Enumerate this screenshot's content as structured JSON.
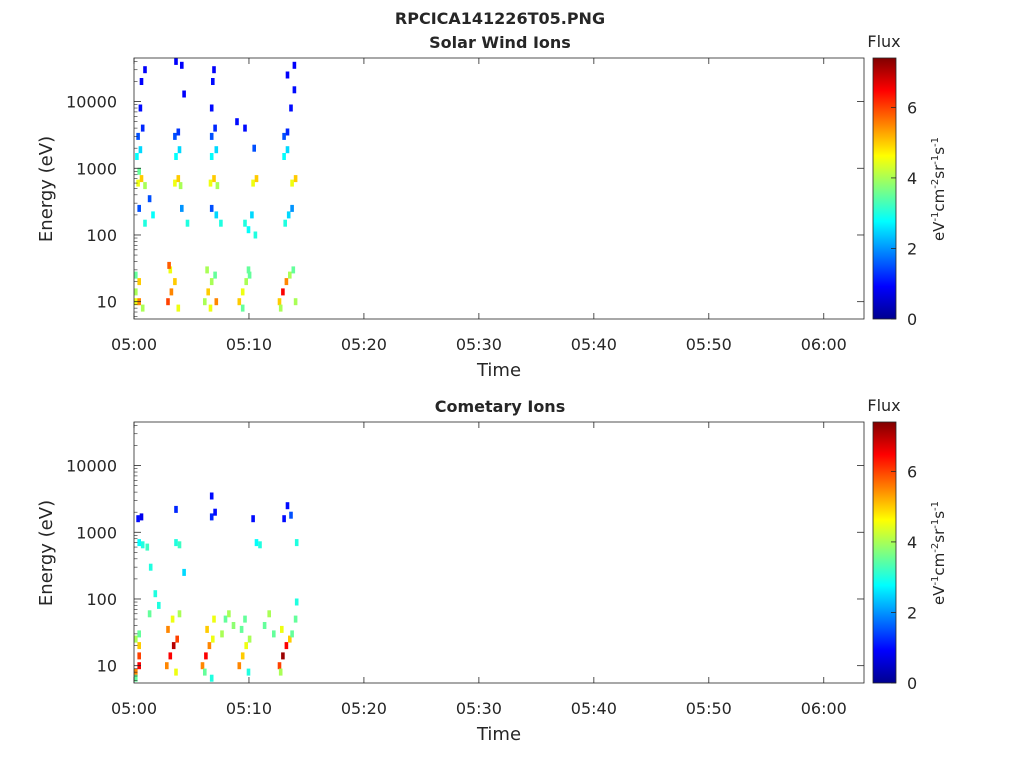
{
  "chart_data": [
    {
      "type": "heatmap",
      "supertitle": "RPCICA141226T05.PNG",
      "title": "Solar Wind Ions",
      "xlabel": "Time",
      "ylabel": "Energy (eV)",
      "x_ticks": [
        "05:00",
        "05:10",
        "05:20",
        "05:30",
        "05:40",
        "05:50",
        "06:00"
      ],
      "x_range_minutes": [
        0,
        63.5
      ],
      "y_scale": "log",
      "y_range": [
        5.5,
        45000
      ],
      "y_ticks": [
        10,
        100,
        1000,
        10000
      ],
      "y_tick_labels": [
        "10",
        "100",
        "1000",
        "10000"
      ],
      "colorbar": {
        "label": "Flux",
        "unit": "eV-1cm-2sr-1s-1",
        "range": [
          0,
          7.4
        ],
        "ticks": [
          0,
          2,
          4,
          6
        ],
        "colormap": "jet"
      },
      "cells": [
        [
          0.0,
          10,
          4.5
        ],
        [
          0.3,
          10,
          5.5
        ],
        [
          0.0,
          14,
          4.0
        ],
        [
          0.3,
          20,
          5.0
        ],
        [
          0.0,
          25,
          3.5
        ],
        [
          0.6,
          8,
          4.0
        ],
        [
          0.2,
          600,
          4.5
        ],
        [
          0.5,
          700,
          5.0
        ],
        [
          0.8,
          550,
          4.0
        ],
        [
          0.3,
          900,
          3.5
        ],
        [
          0.1,
          1500,
          2.8
        ],
        [
          0.4,
          1900,
          2.5
        ],
        [
          0.2,
          3000,
          1.5
        ],
        [
          0.6,
          4000,
          1.2
        ],
        [
          0.4,
          8000,
          1.0
        ],
        [
          0.5,
          20000,
          0.9
        ],
        [
          0.8,
          30000,
          0.9
        ],
        [
          0.3,
          250,
          1.5
        ],
        [
          1.2,
          350,
          1.5
        ],
        [
          0.8,
          150,
          3.0
        ],
        [
          1.5,
          200,
          2.8
        ],
        [
          2.8,
          10,
          6.0
        ],
        [
          3.1,
          14,
          5.5
        ],
        [
          3.4,
          20,
          5.0
        ],
        [
          3.0,
          30,
          4.5
        ],
        [
          3.7,
          8,
          4.5
        ],
        [
          2.9,
          35,
          5.8
        ],
        [
          3.4,
          600,
          4.5
        ],
        [
          3.7,
          700,
          5.0
        ],
        [
          3.9,
          550,
          4.0
        ],
        [
          3.5,
          1500,
          2.8
        ],
        [
          3.8,
          1900,
          2.5
        ],
        [
          3.4,
          3000,
          1.5
        ],
        [
          3.7,
          3500,
          1.3
        ],
        [
          4.0,
          35000,
          0.9
        ],
        [
          4.2,
          13000,
          0.9
        ],
        [
          3.5,
          40000,
          0.9
        ],
        [
          4.0,
          250,
          2.0
        ],
        [
          4.5,
          150,
          3.0
        ],
        [
          6.0,
          10,
          4.0
        ],
        [
          6.3,
          14,
          5.0
        ],
        [
          6.6,
          20,
          4.0
        ],
        [
          6.9,
          25,
          3.5
        ],
        [
          6.5,
          8,
          4.5
        ],
        [
          7.0,
          10,
          5.5
        ],
        [
          6.2,
          30,
          4.0
        ],
        [
          6.5,
          600,
          4.5
        ],
        [
          6.8,
          700,
          5.0
        ],
        [
          7.1,
          550,
          4.0
        ],
        [
          6.6,
          1500,
          2.8
        ],
        [
          7.0,
          1900,
          2.5
        ],
        [
          6.6,
          3000,
          1.5
        ],
        [
          6.9,
          4000,
          1.2
        ],
        [
          6.6,
          8000,
          1.0
        ],
        [
          6.8,
          30000,
          0.9
        ],
        [
          6.7,
          20000,
          1.0
        ],
        [
          7.0,
          200,
          2.5
        ],
        [
          6.6,
          250,
          1.5
        ],
        [
          7.4,
          150,
          3.0
        ],
        [
          9.0,
          10,
          5.0
        ],
        [
          9.3,
          14,
          4.5
        ],
        [
          9.6,
          20,
          4.0
        ],
        [
          9.9,
          25,
          3.5
        ],
        [
          9.3,
          8,
          3.5
        ],
        [
          9.8,
          30,
          3.5
        ],
        [
          10.2,
          600,
          4.5
        ],
        [
          10.5,
          700,
          5.0
        ],
        [
          9.5,
          4000,
          1.0
        ],
        [
          8.8,
          5000,
          1.0
        ],
        [
          10.3,
          2000,
          1.5
        ],
        [
          9.5,
          150,
          3.0
        ],
        [
          9.8,
          120,
          2.8
        ],
        [
          10.1,
          200,
          2.5
        ],
        [
          10.4,
          100,
          3.0
        ],
        [
          12.5,
          10,
          5.0
        ],
        [
          12.8,
          14,
          6.5
        ],
        [
          13.1,
          20,
          5.5
        ],
        [
          13.4,
          25,
          4.0
        ],
        [
          12.6,
          8,
          4.0
        ],
        [
          13.7,
          30,
          3.5
        ],
        [
          13.9,
          10,
          4.0
        ],
        [
          13.6,
          600,
          4.5
        ],
        [
          13.9,
          700,
          5.0
        ],
        [
          12.9,
          1500,
          2.8
        ],
        [
          13.2,
          1900,
          2.5
        ],
        [
          12.9,
          3000,
          1.5
        ],
        [
          13.2,
          3500,
          1.2
        ],
        [
          13.5,
          8000,
          1.0
        ],
        [
          13.2,
          25000,
          0.9
        ],
        [
          13.8,
          35000,
          0.9
        ],
        [
          13.8,
          15000,
          1.0
        ],
        [
          13.0,
          150,
          3.0
        ],
        [
          13.3,
          200,
          2.5
        ],
        [
          13.6,
          250,
          2.0
        ]
      ]
    },
    {
      "type": "heatmap",
      "title": "Cometary Ions",
      "xlabel": "Time",
      "ylabel": "Energy (eV)",
      "x_ticks": [
        "05:00",
        "05:10",
        "05:20",
        "05:30",
        "05:40",
        "05:50",
        "06:00"
      ],
      "x_range_minutes": [
        0,
        63.5
      ],
      "y_scale": "log",
      "y_range": [
        5.5,
        45000
      ],
      "y_ticks": [
        10,
        100,
        1000,
        10000
      ],
      "y_tick_labels": [
        "10",
        "100",
        "1000",
        "10000"
      ],
      "colorbar": {
        "label": "Flux",
        "unit": "eV-1cm-2sr-1s-1",
        "range": [
          0,
          7.4
        ],
        "ticks": [
          0,
          2,
          4,
          6
        ],
        "colormap": "jet"
      },
      "cells": [
        [
          0.0,
          8,
          5.5
        ],
        [
          0.3,
          10,
          6.5
        ],
        [
          0.3,
          14,
          6.0
        ],
        [
          0.3,
          20,
          5.0
        ],
        [
          0.0,
          25,
          4.0
        ],
        [
          0.3,
          30,
          3.5
        ],
        [
          0.0,
          6.5,
          3.5
        ],
        [
          0.2,
          1600,
          1.0
        ],
        [
          0.5,
          1700,
          0.8
        ],
        [
          0.3,
          700,
          2.8
        ],
        [
          0.6,
          650,
          3.0
        ],
        [
          1.0,
          600,
          3.2
        ],
        [
          1.3,
          300,
          3.0
        ],
        [
          1.7,
          120,
          3.0
        ],
        [
          1.2,
          60,
          3.5
        ],
        [
          2.0,
          80,
          3.0
        ],
        [
          2.7,
          10,
          5.5
        ],
        [
          3.0,
          14,
          6.5
        ],
        [
          3.3,
          20,
          7.0
        ],
        [
          3.6,
          25,
          6.0
        ],
        [
          2.8,
          35,
          5.5
        ],
        [
          3.2,
          50,
          4.5
        ],
        [
          3.5,
          8,
          4.5
        ],
        [
          3.8,
          60,
          4.0
        ],
        [
          3.5,
          700,
          3.0
        ],
        [
          3.8,
          650,
          3.2
        ],
        [
          3.5,
          2200,
          1.2
        ],
        [
          4.2,
          250,
          2.5
        ],
        [
          5.8,
          10,
          5.5
        ],
        [
          6.1,
          14,
          6.5
        ],
        [
          6.4,
          20,
          5.5
        ],
        [
          6.7,
          25,
          4.5
        ],
        [
          6.2,
          35,
          5.0
        ],
        [
          6.8,
          50,
          4.5
        ],
        [
          6.0,
          8,
          3.5
        ],
        [
          6.6,
          6.5,
          3.0
        ],
        [
          6.6,
          1700,
          1.2
        ],
        [
          6.9,
          2000,
          1.0
        ],
        [
          6.6,
          3500,
          1.0
        ],
        [
          7.5,
          30,
          4.0
        ],
        [
          7.8,
          50,
          3.5
        ],
        [
          8.1,
          60,
          4.0
        ],
        [
          8.5,
          40,
          3.8
        ],
        [
          9.0,
          10,
          5.5
        ],
        [
          9.3,
          14,
          5.0
        ],
        [
          9.6,
          20,
          4.5
        ],
        [
          9.9,
          25,
          4.0
        ],
        [
          9.2,
          35,
          3.5
        ],
        [
          9.8,
          8,
          3.0
        ],
        [
          9.5,
          50,
          3.5
        ],
        [
          10.2,
          1600,
          1.0
        ],
        [
          10.5,
          700,
          2.8
        ],
        [
          10.8,
          650,
          3.0
        ],
        [
          11.2,
          40,
          3.5
        ],
        [
          11.6,
          60,
          4.0
        ],
        [
          12.0,
          30,
          3.5
        ],
        [
          12.5,
          10,
          6.0
        ],
        [
          12.8,
          14,
          7.2
        ],
        [
          13.1,
          20,
          6.5
        ],
        [
          13.4,
          25,
          5.0
        ],
        [
          12.7,
          35,
          4.5
        ],
        [
          13.6,
          30,
          3.5
        ],
        [
          13.9,
          50,
          3.5
        ],
        [
          12.6,
          8,
          4.0
        ],
        [
          12.9,
          1600,
          1.0
        ],
        [
          13.2,
          2500,
          1.0
        ],
        [
          13.5,
          1800,
          1.5
        ],
        [
          14.0,
          700,
          3.0
        ],
        [
          14.0,
          90,
          3.0
        ]
      ]
    }
  ]
}
